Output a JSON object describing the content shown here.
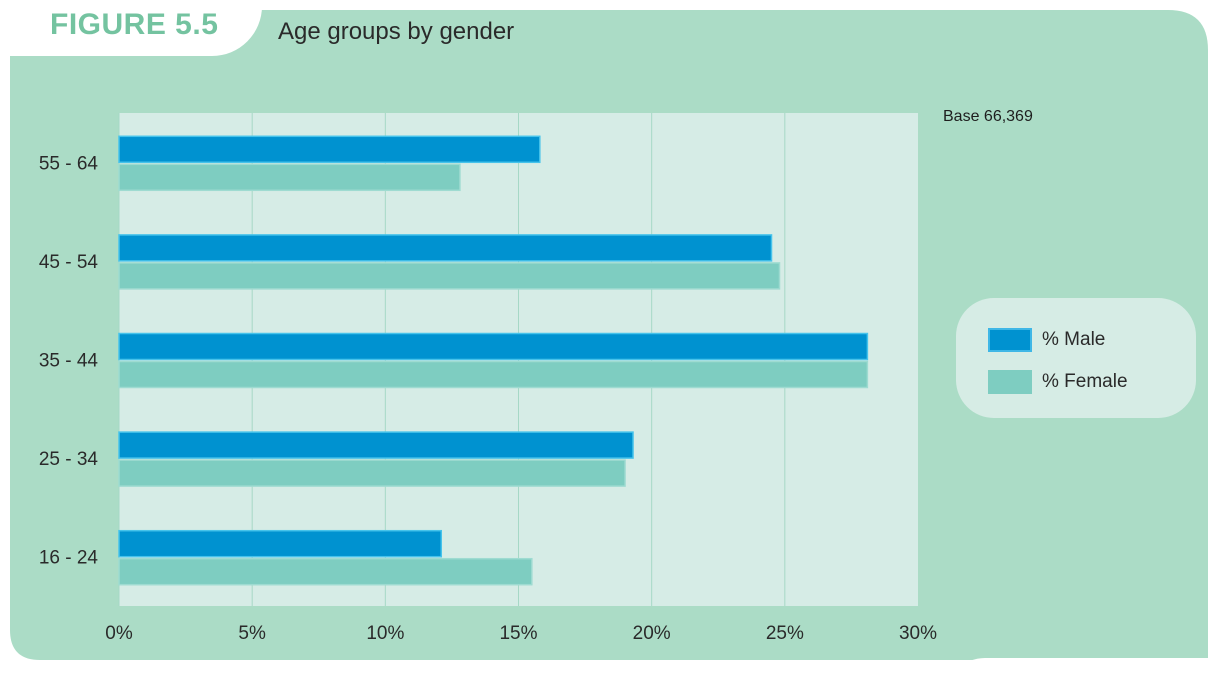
{
  "figure": {
    "label": "FIGURE 5.5",
    "title": "Age groups by gender",
    "base_note": "Base 66,369"
  },
  "colors": {
    "panel": "#abdcc6",
    "plot_bg": "#d6ece6",
    "male": "#0092d0",
    "female": "#7ecdc1",
    "label_accent": "#74c3a0"
  },
  "legend": {
    "items": [
      {
        "label": "% Male",
        "color": "#0092d0",
        "icon": "square-swatch"
      },
      {
        "label": "% Female",
        "color": "#7ecdc1",
        "icon": "square-swatch"
      }
    ]
  },
  "chart_data": {
    "type": "bar",
    "orientation": "horizontal",
    "title": "Age groups by gender",
    "categories": [
      "55 - 64",
      "45 - 54",
      "35 - 44",
      "25 - 34",
      "16 - 24"
    ],
    "series": [
      {
        "name": "% Male",
        "color": "#0092d0",
        "values": [
          15.8,
          24.5,
          28.1,
          19.3,
          12.1
        ]
      },
      {
        "name": "% Female",
        "color": "#7ecdc1",
        "values": [
          12.8,
          24.8,
          28.1,
          19.0,
          15.5
        ]
      }
    ],
    "xlim": [
      0,
      30
    ],
    "xticks": [
      0,
      5,
      10,
      15,
      20,
      25,
      30
    ],
    "xtick_labels": [
      "0%",
      "5%",
      "10%",
      "15%",
      "20%",
      "25%",
      "30%"
    ],
    "xlabel": "",
    "ylabel": "",
    "grid": "vertical",
    "legend_position": "right"
  }
}
